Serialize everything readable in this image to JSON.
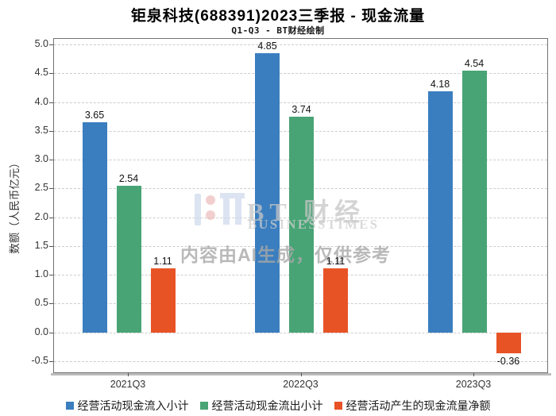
{
  "header": {
    "title": "钜泉科技(688391)2023三季报 - 现金流量",
    "subtitle": "Q1-Q3 - BT财经绘制"
  },
  "watermark": {
    "brand": "BT 财经",
    "brand_sub": "BUSINESSTIMES",
    "disclaimer": "内容由AI生成，仅供参考"
  },
  "chart_data": {
    "type": "bar",
    "title": "钜泉科技(688391)2023三季报 - 现金流量",
    "subtitle": "Q1-Q3 - BT财经绘制",
    "categories": [
      "2021Q3",
      "2022Q3",
      "2023Q3"
    ],
    "series": [
      {
        "name": "经营活动现金流入小计",
        "color": "#3a7ebf",
        "values": [
          3.65,
          4.85,
          4.18
        ]
      },
      {
        "name": "经营活动现金流出小计",
        "color": "#48a475",
        "values": [
          2.54,
          3.74,
          4.54
        ]
      },
      {
        "name": "经营活动产生的现金流量净额",
        "color": "#e85326",
        "values": [
          1.11,
          1.11,
          -0.36
        ]
      }
    ],
    "xlabel": "",
    "ylabel": "数额（人民币亿元）",
    "ylim": [
      -0.5,
      5.0
    ],
    "ytick_step": 0.5,
    "grid": true,
    "legend_position": "bottom"
  }
}
